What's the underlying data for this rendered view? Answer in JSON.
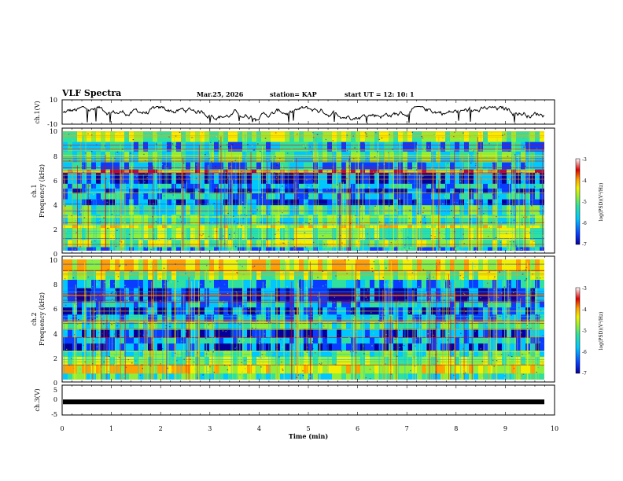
{
  "header": {
    "title": "VLF Spectra",
    "date": "Mar.25, 2026",
    "station": "station= KAP",
    "start": "start  UT =   12: 10: 1"
  },
  "colors": {
    "spectrogram_base": "#34d9a0",
    "colormap": [
      "#05009a",
      "#0a3cff",
      "#00c8ff",
      "#2fe0a0",
      "#8fee3c",
      "#f2f000",
      "#ffa000",
      "#e00000",
      "#ffffff"
    ]
  },
  "chart_data": [
    {
      "type": "line",
      "name": "ch1-waveform",
      "ylabel": "ch.1(V)",
      "ylim": [
        -10,
        10
      ],
      "yticks": [
        "10",
        "-10"
      ],
      "xlim": [
        0,
        10
      ],
      "note": "noisy voltage trace oscillating roughly between -6 and 4 V with occasional spikes"
    },
    {
      "type": "heatmap",
      "name": "ch1-spectrogram",
      "ylabel_top": "ch.1",
      "ylabel": "Frequency (kHz)",
      "ylim": [
        0,
        10
      ],
      "yticks": [
        "0",
        "2",
        "4",
        "6",
        "8",
        "10"
      ],
      "xlim": [
        0,
        9.85
      ],
      "colorbar": {
        "label": "log(PSD)(V²/Hz)",
        "range": [
          -7,
          -3
        ],
        "ticks": [
          "-3",
          "-4",
          "-5",
          "-6",
          "-7"
        ]
      }
    },
    {
      "type": "heatmap",
      "name": "ch2-spectrogram",
      "ylabel_top": "ch.2",
      "ylabel": "Frequency (kHz)",
      "ylim": [
        0,
        10
      ],
      "yticks": [
        "0",
        "2",
        "4",
        "6",
        "8",
        "10"
      ],
      "xlim": [
        0,
        9.85
      ],
      "colorbar": {
        "label": "log(PSD)(V²/Hz)",
        "range": [
          -7,
          -3
        ],
        "ticks": [
          "-3",
          "-4",
          "-5",
          "-6",
          "-7"
        ]
      }
    },
    {
      "type": "line",
      "name": "ch3-waveform",
      "ylabel": "ch.3(V)",
      "ylim": [
        -5,
        5
      ],
      "yticks": [
        "5",
        "0",
        "-5"
      ],
      "xlim": [
        0,
        10
      ],
      "constant_value": -0.6,
      "note": "flat thick bar near -0.6 V spanning 0 to 9.85 min"
    }
  ],
  "x_axis": {
    "label": "Time (min)",
    "ticks": [
      "0",
      "1",
      "2",
      "3",
      "4",
      "5",
      "6",
      "7",
      "8",
      "9",
      "10"
    ]
  }
}
